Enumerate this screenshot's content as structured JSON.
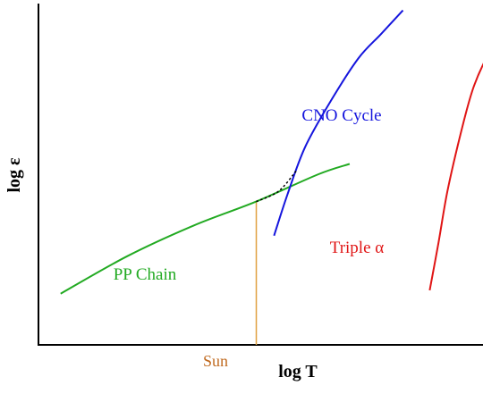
{
  "chart_data": {
    "type": "line",
    "xlabel": "log T",
    "ylabel": "log ε",
    "xlim": [
      0,
      100
    ],
    "ylim": [
      0,
      100
    ],
    "grid": false,
    "series": [
      {
        "name": "PP Chain",
        "color": "#22aa22",
        "points": [
          [
            5,
            15
          ],
          [
            20,
            26
          ],
          [
            35,
            35
          ],
          [
            49,
            42
          ],
          [
            63,
            50
          ],
          [
            70,
            53
          ]
        ]
      },
      {
        "name": "CNO Cycle",
        "color": "#1515dd",
        "points": [
          [
            53,
            32
          ],
          [
            56,
            44
          ],
          [
            60,
            58
          ],
          [
            66,
            72
          ],
          [
            72,
            84
          ],
          [
            77,
            91
          ],
          [
            82,
            98
          ]
        ]
      },
      {
        "name": "Triple α",
        "color": "#e01515",
        "points": [
          [
            88,
            16
          ],
          [
            90,
            30
          ],
          [
            92,
            45
          ],
          [
            95,
            62
          ],
          [
            98,
            76
          ],
          [
            102,
            87
          ],
          [
            105,
            92
          ]
        ]
      }
    ],
    "dotted_connector": {
      "color": "#000000",
      "points": [
        [
          49,
          42
        ],
        [
          54,
          45
        ],
        [
          58,
          51
        ]
      ]
    },
    "marker": {
      "label": "Sun",
      "x": 49,
      "color": "#e0a040",
      "label_color": "#c06a20"
    }
  }
}
